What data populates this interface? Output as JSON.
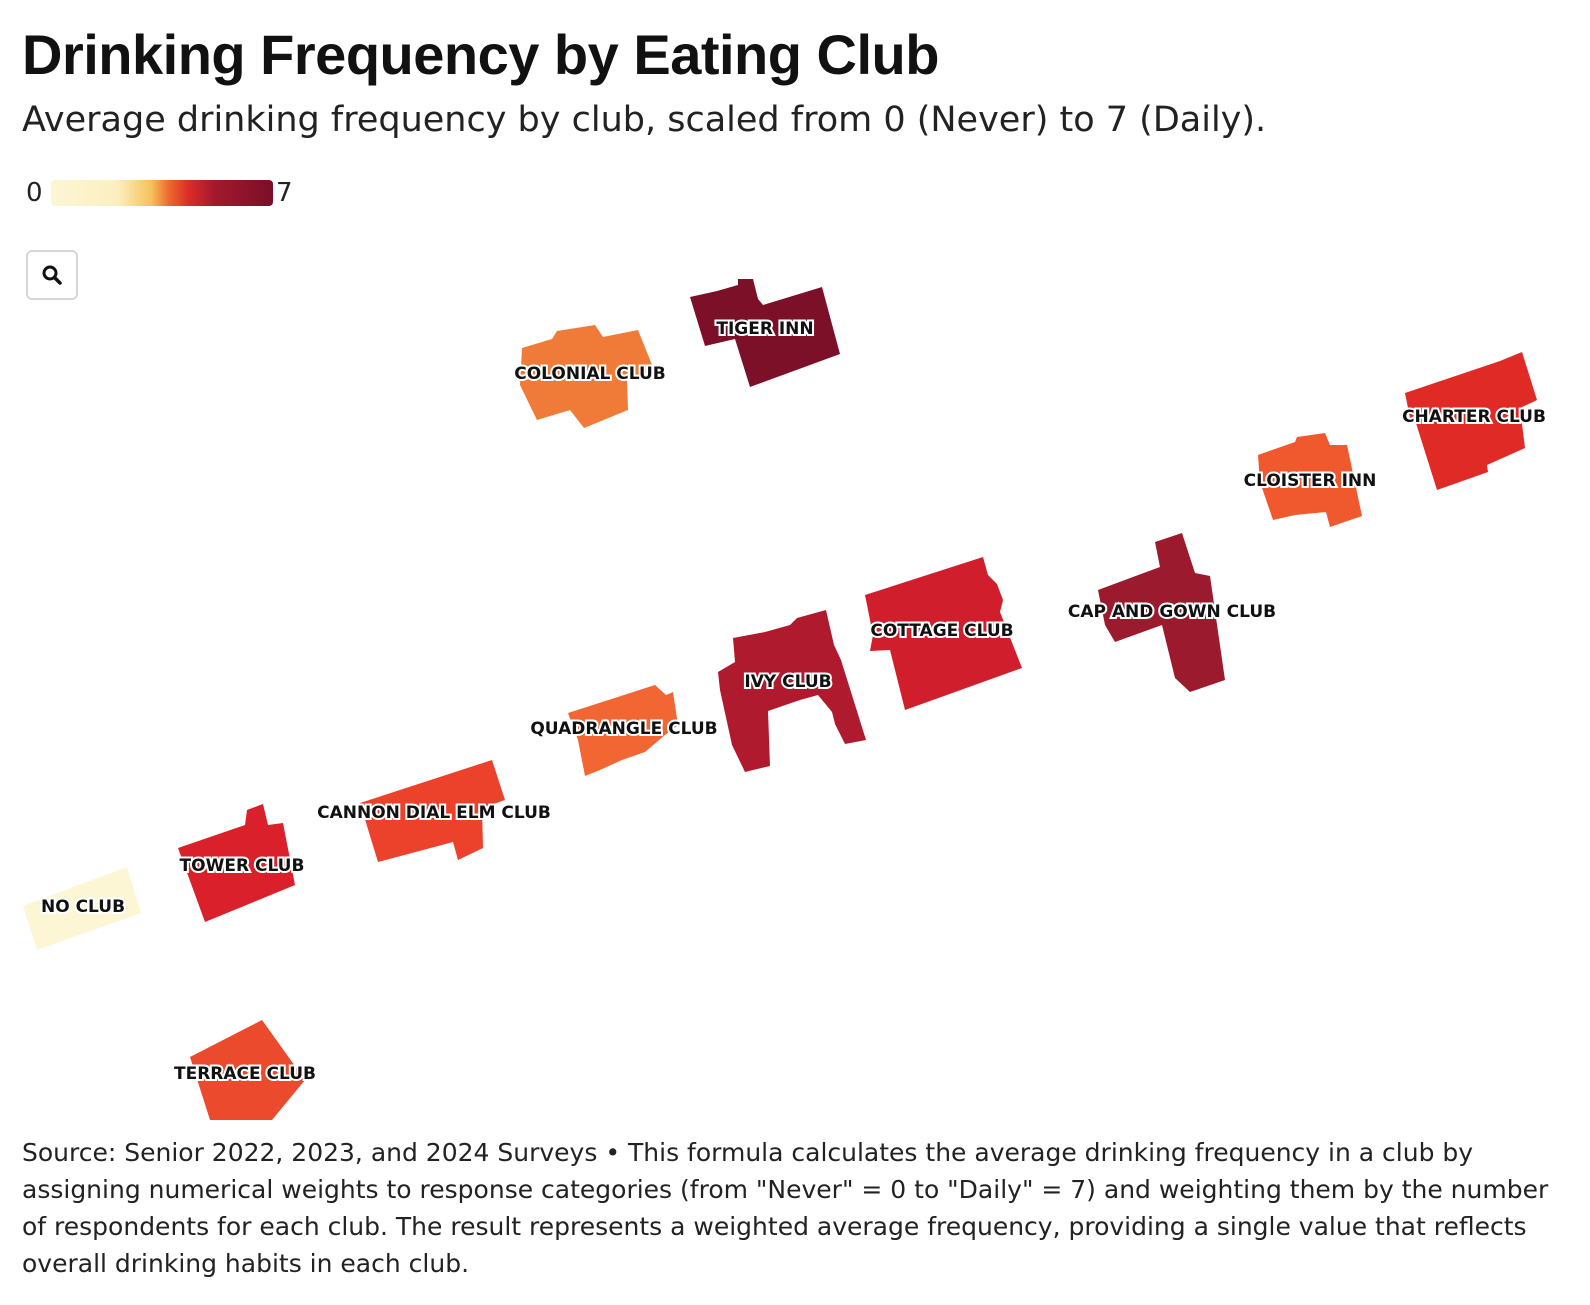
{
  "header": {
    "title": "Drinking Frequency by Eating Club",
    "subtitle": "Average drinking frequency by club, scaled from 0 (Never) to 7 (Daily)."
  },
  "legend": {
    "min_label": "0",
    "max_label": "7",
    "scale_min": 0,
    "scale_max": 7
  },
  "controls": {
    "search_icon": "search-icon"
  },
  "clubs": [
    {
      "id": "tiger-inn",
      "label": "TIGER INN",
      "color": "#7c1028"
    },
    {
      "id": "colonial-club",
      "label": "COLONIAL CLUB",
      "color": "#f07a38"
    },
    {
      "id": "charter-club",
      "label": "CHARTER CLUB",
      "color": "#e02a26"
    },
    {
      "id": "cloister-inn",
      "label": "CLOISTER INN",
      "color": "#f0582e"
    },
    {
      "id": "cap-and-gown-club",
      "label": "CAP AND GOWN CLUB",
      "color": "#9b1a2e"
    },
    {
      "id": "cottage-club",
      "label": "COTTAGE CLUB",
      "color": "#d11e2c"
    },
    {
      "id": "ivy-club",
      "label": "IVY CLUB",
      "color": "#b01a2e"
    },
    {
      "id": "quadrangle-club",
      "label": "QUADRANGLE CLUB",
      "color": "#f26633"
    },
    {
      "id": "cannon-dial-elm-club",
      "label": "CANNON DIAL ELM CLUB",
      "color": "#ec412b"
    },
    {
      "id": "tower-club",
      "label": "TOWER CLUB",
      "color": "#d9202b"
    },
    {
      "id": "no-club",
      "label": "NO CLUB",
      "color": "#fcf6d4"
    },
    {
      "id": "terrace-club",
      "label": "TERRACE CLUB",
      "color": "#ec4a2c"
    }
  ],
  "footer": {
    "text": "Source: Senior 2022, 2023, and 2024 Surveys • This formula calculates the average drinking frequency in a club by assigning numerical weights to response categories (from \"Never\" = 0 to \"Daily\" = 7) and weighting them by the number of respondents for each club. The result represents a weighted average frequency, providing a single value that reflects overall drinking habits in each club."
  }
}
